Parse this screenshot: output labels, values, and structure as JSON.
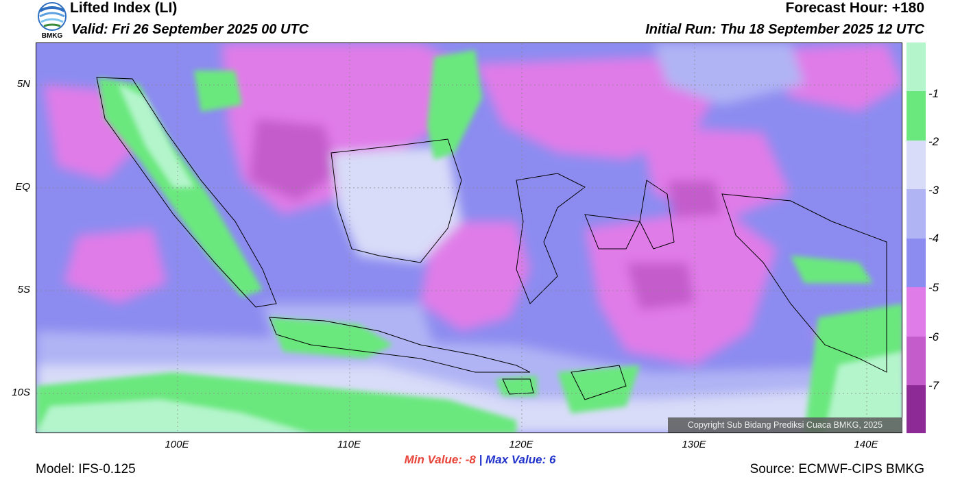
{
  "header": {
    "title": "Lifted Index (LI)",
    "valid": "Valid: Fri 26 September 2025 00 UTC",
    "forecast_hour": "Forecast Hour: +180",
    "initial_run": "Initial Run: Thu 18 September 2025 12 UTC"
  },
  "logo": {
    "text": "BMKG"
  },
  "map": {
    "lat_ticks": [
      "5N",
      "EQ",
      "5S",
      "10S"
    ],
    "lon_ticks": [
      "100E",
      "110E",
      "120E",
      "130E",
      "140E"
    ],
    "copyright": "Copyright Sub Bidang Prediksi Cuaca BMKG, 2025"
  },
  "colorbar": {
    "labels": [
      "-1",
      "-2",
      "-3",
      "-4",
      "-5",
      "-6",
      "-7"
    ],
    "colors": [
      "#b4f5cc",
      "#6ae87e",
      "#d8dcf8",
      "#b0b4f4",
      "#8c8cf0",
      "#e07ce8",
      "#c45ccc",
      "#8e2a96"
    ]
  },
  "stats": {
    "min_label": "Min Value:",
    "min_value": "-8",
    "separator": "|",
    "max_label": "Max Value:",
    "max_value": "6"
  },
  "footer": {
    "model": "Model: IFS-0.125",
    "source": "Source: ECMWF-CIPS BMKG"
  }
}
